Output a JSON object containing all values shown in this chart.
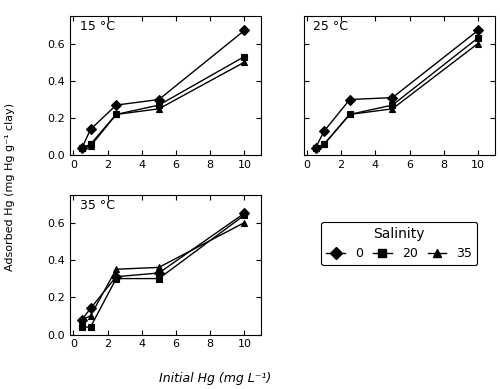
{
  "panels": [
    {
      "label": "15 °C",
      "series": [
        {
          "salinity": 0,
          "x": [
            0.5,
            1,
            2.5,
            5,
            10
          ],
          "y": [
            0.04,
            0.14,
            0.27,
            0.3,
            0.67
          ]
        },
        {
          "salinity": 20,
          "x": [
            0.5,
            1,
            2.5,
            5,
            10
          ],
          "y": [
            0.04,
            0.06,
            0.22,
            0.27,
            0.53
          ]
        },
        {
          "salinity": 35,
          "x": [
            0.5,
            1,
            2.5,
            5,
            10
          ],
          "y": [
            0.04,
            0.05,
            0.22,
            0.25,
            0.5
          ]
        }
      ]
    },
    {
      "label": "25 °C",
      "series": [
        {
          "salinity": 0,
          "x": [
            0.5,
            1,
            2.5,
            5,
            10
          ],
          "y": [
            0.04,
            0.13,
            0.3,
            0.31,
            0.67
          ]
        },
        {
          "salinity": 20,
          "x": [
            0.5,
            1,
            2.5,
            5,
            10
          ],
          "y": [
            0.04,
            0.06,
            0.22,
            0.27,
            0.63
          ]
        },
        {
          "salinity": 35,
          "x": [
            0.5,
            1,
            2.5,
            5,
            10
          ],
          "y": [
            0.04,
            0.06,
            0.22,
            0.25,
            0.6
          ]
        }
      ]
    },
    {
      "label": "35 °C",
      "series": [
        {
          "salinity": 0,
          "x": [
            0.5,
            1,
            2.5,
            5,
            10
          ],
          "y": [
            0.08,
            0.14,
            0.31,
            0.33,
            0.65
          ]
        },
        {
          "salinity": 20,
          "x": [
            0.5,
            1,
            2.5,
            5,
            10
          ],
          "y": [
            0.04,
            0.04,
            0.3,
            0.3,
            0.64
          ]
        },
        {
          "salinity": 35,
          "x": [
            0.5,
            1,
            2.5,
            5,
            10
          ],
          "y": [
            0.08,
            0.1,
            0.35,
            0.36,
            0.6
          ]
        }
      ]
    }
  ],
  "markers": [
    "D",
    "s",
    "^"
  ],
  "markersizes": [
    5,
    5,
    5
  ],
  "ylim": [
    0,
    0.75
  ],
  "yticks": [
    0.0,
    0.2,
    0.4,
    0.6
  ],
  "xlim": [
    -0.2,
    11
  ],
  "xticks": [
    0,
    2,
    4,
    6,
    8,
    10
  ],
  "ylabel": "Adsorbed Hg (mg Hg g⁻¹ clay)",
  "xlabel": "Initial Hg (mg L⁻¹)",
  "legend_title": "Salinity",
  "legend_labels": [
    "0",
    "20",
    "35"
  ]
}
